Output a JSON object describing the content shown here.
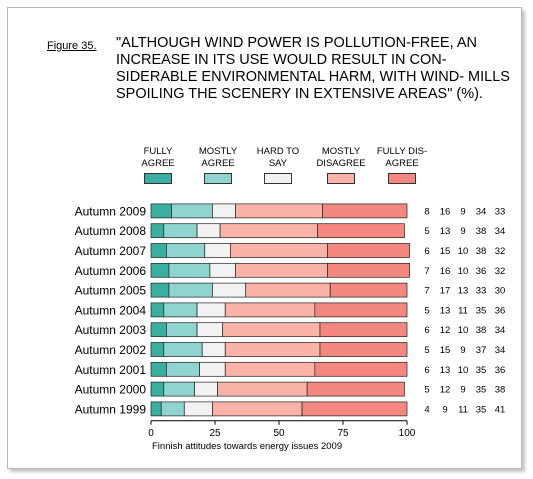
{
  "figure": {
    "label": "Figure 35.",
    "title": "\"ALTHOUGH WIND POWER IS POLLUTION-FREE, AN INCREASE IN ITS USE WOULD RESULT IN CON- SIDERABLE ENVIRONMENTAL HARM, WITH WIND- MILLS SPOILING THE SCENERY IN EXTENSIVE AREAS\" (%).",
    "caption": "Finnish attitudes towards energy issues 2009"
  },
  "colors": {
    "fully_agree": "#3aaea0",
    "mostly_agree": "#8fd4cf",
    "hard_to_say": "#f2f2f2",
    "mostly_disagree": "#fbb3a8",
    "fully_disagree": "#f4877f"
  },
  "chart_data": {
    "type": "bar",
    "orientation": "horizontal",
    "stacked": true,
    "categories": [
      "Autumn 2009",
      "Autumn 2008",
      "Autumn 2007",
      "Autumn 2006",
      "Autumn 2005",
      "Autumn 2004",
      "Autumn 2003",
      "Autumn 2002",
      "Autumn 2001",
      "Autumn 2000",
      "Autumn 1999"
    ],
    "series": [
      {
        "name": "FULLY AGREE",
        "values": [
          8,
          5,
          6,
          7,
          7,
          5,
          6,
          5,
          6,
          5,
          4
        ]
      },
      {
        "name": "MOSTLY AGREE",
        "values": [
          16,
          13,
          15,
          16,
          17,
          13,
          12,
          15,
          13,
          12,
          9
        ]
      },
      {
        "name": "HARD TO SAY",
        "values": [
          9,
          9,
          10,
          10,
          13,
          11,
          10,
          9,
          10,
          9,
          11
        ]
      },
      {
        "name": "MOSTLY DISAGREE",
        "values": [
          34,
          38,
          38,
          36,
          33,
          35,
          38,
          37,
          35,
          35,
          35
        ]
      },
      {
        "name": "FULLY DIS- AGREE",
        "values": [
          33,
          34,
          32,
          32,
          30,
          36,
          34,
          34,
          36,
          38,
          41
        ]
      }
    ],
    "xlim": [
      0,
      100
    ],
    "xticks": [
      0,
      25,
      50,
      75,
      100
    ],
    "legend": "top",
    "grid": false
  }
}
